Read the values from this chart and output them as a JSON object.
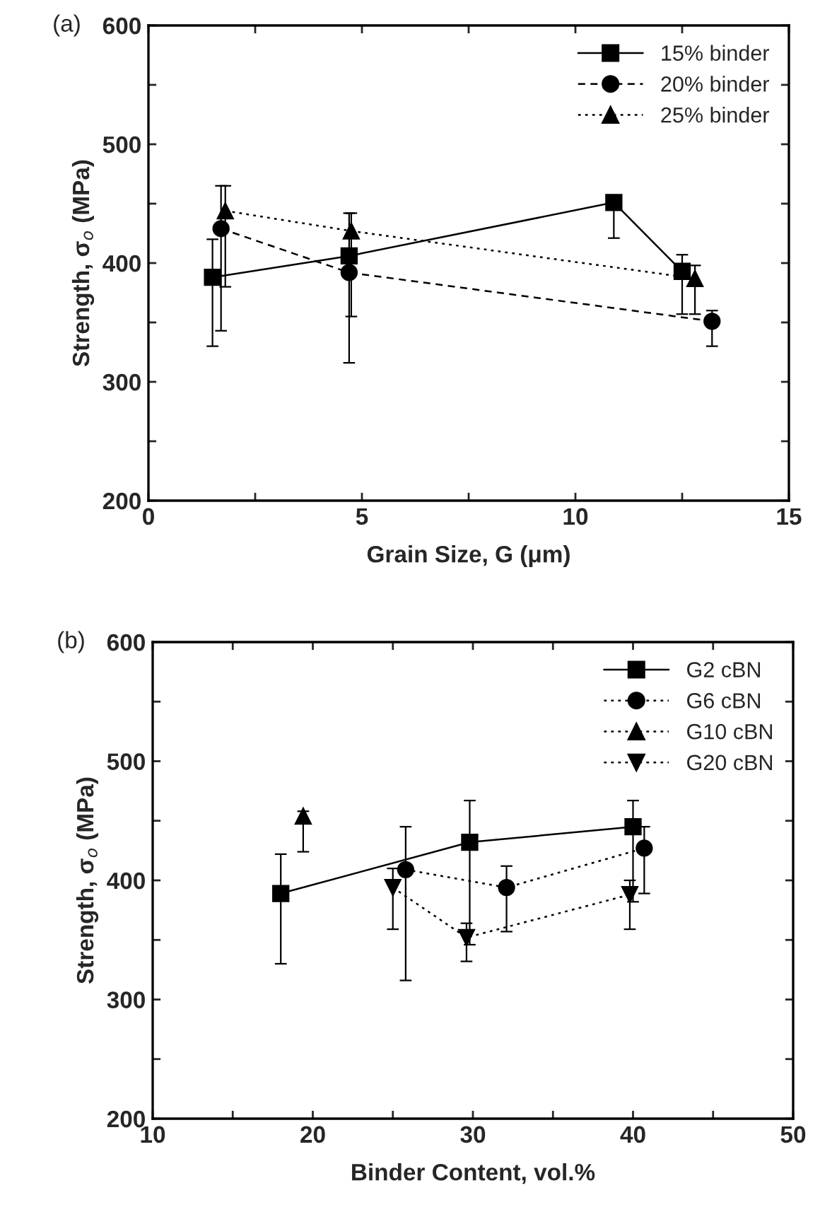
{
  "chart_data": [
    {
      "type": "line",
      "annotations": [
        "(a)"
      ],
      "xlabel": "Grain Size, G (μm)",
      "ylabel": "Strength, σ$_{o}$ (MPa)",
      "xlim": [
        0,
        15
      ],
      "xticks": [
        0,
        {
          "value": 2.5,
          "label": null
        },
        5,
        {
          "value": 7.5,
          "label": null
        },
        10,
        {
          "value": 12.5,
          "label": null
        },
        15
      ],
      "ylim": [
        200,
        600
      ],
      "yticks": [
        200,
        {
          "value": 250,
          "label": null
        },
        300,
        {
          "value": 350,
          "label": null
        },
        400,
        {
          "value": 450,
          "label": null
        },
        500,
        {
          "value": 550,
          "label": null
        },
        600
      ],
      "legend": "top right",
      "grid": false,
      "series": [
        {
          "name": "15% binder",
          "color": "#000000",
          "marker": "square",
          "line_style": "solid",
          "x": [
            1.5,
            4.7,
            10.9,
            12.5
          ],
          "values": [
            388,
            406,
            451,
            393
          ],
          "errors": [
            [
              330,
              420
            ],
            null,
            [
              421,
              451
            ],
            [
              357,
              407
            ]
          ]
        },
        {
          "name": "20% binder",
          "color": "#000000",
          "marker": "circle",
          "line_style": "dashed",
          "x": [
            1.7,
            4.7,
            13.2
          ],
          "values": [
            429,
            392,
            351
          ],
          "errors": [
            [
              343,
              465
            ],
            [
              316,
              442
            ],
            [
              330,
              360
            ]
          ]
        },
        {
          "name": "25% binder",
          "color": "#000000",
          "marker": "triangle",
          "line_style": "dotted",
          "x": [
            1.8,
            4.75,
            12.8
          ],
          "values": [
            444,
            427,
            387
          ],
          "errors": [
            [
              380,
              465
            ],
            [
              355,
              442
            ],
            [
              357,
              398
            ]
          ]
        }
      ]
    },
    {
      "type": "line",
      "annotations": [
        "(b)"
      ],
      "xlabel": "Binder Content, vol.%",
      "ylabel": "Strength, σ$_{o}$ (MPa)",
      "xlim": [
        10,
        50
      ],
      "xticks": [
        10,
        {
          "value": 15,
          "label": null
        },
        20,
        {
          "value": 25,
          "label": null
        },
        30,
        {
          "value": 35,
          "label": null
        },
        40,
        {
          "value": 45,
          "label": null
        },
        50
      ],
      "ylim": [
        200,
        600
      ],
      "yticks": [
        200,
        {
          "value": 250,
          "label": null
        },
        300,
        {
          "value": 350,
          "label": null
        },
        400,
        {
          "value": 450,
          "label": null
        },
        500,
        {
          "value": 550,
          "label": null
        },
        600
      ],
      "legend": "top right",
      "grid": false,
      "series": [
        {
          "name": "G2 cBN",
          "color": "#000000",
          "marker": "square",
          "line_style": "solid",
          "x": [
            18.0,
            29.8,
            40.0
          ],
          "values": [
            389,
            432,
            445
          ],
          "errors": [
            [
              330,
              422
            ],
            [
              346,
              467
            ],
            [
              382,
              467
            ]
          ]
        },
        {
          "name": "G6 cBN",
          "color": "#000000",
          "marker": "circle",
          "line_style": "dotted",
          "x": [
            25.8,
            32.1,
            40.7
          ],
          "values": [
            409,
            394,
            427
          ],
          "errors": [
            [
              316,
              445
            ],
            [
              357,
              412
            ],
            [
              389,
              445
            ]
          ]
        },
        {
          "name": "G10 cBN",
          "color": "#000000",
          "marker": "triangle",
          "line_style": "dotted",
          "x": [
            19.4
          ],
          "values": [
            454
          ],
          "errors": [
            [
              424,
              458
            ]
          ]
        },
        {
          "name": "G20 cBN",
          "color": "#000000",
          "marker": "triangle_down",
          "line_style": "dotted",
          "x": [
            25.0,
            29.6,
            39.8
          ],
          "values": [
            394,
            352,
            388
          ],
          "errors": [
            [
              359,
              410
            ],
            [
              332,
              364
            ],
            [
              359,
              400
            ]
          ]
        }
      ]
    }
  ]
}
